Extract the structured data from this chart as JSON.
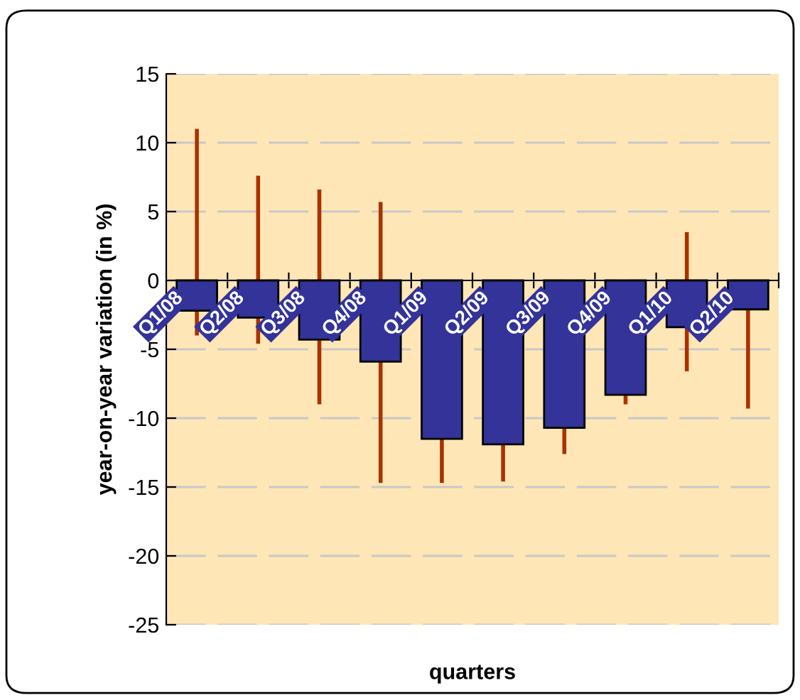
{
  "chart_data": {
    "type": "bar",
    "categories": [
      "Q1/08",
      "Q2/08",
      "Q3/08",
      "Q4/08",
      "Q1/09",
      "Q2/09",
      "Q3/09",
      "Q4/09",
      "Q1/10",
      "Q2/10"
    ],
    "values": [
      -2.2,
      -2.7,
      -4.3,
      -5.9,
      -11.5,
      -11.9,
      -10.7,
      -8.3,
      -3.4,
      -2.1
    ],
    "errors": [
      [
        -4.0,
        11.0
      ],
      [
        -4.6,
        7.6
      ],
      [
        -9.0,
        6.6
      ],
      [
        -14.7,
        5.7
      ],
      [
        -14.7,
        0
      ],
      [
        -14.6,
        0
      ],
      [
        -12.6,
        0
      ],
      [
        -9.0,
        0
      ],
      [
        -6.6,
        3.5
      ],
      [
        -9.3,
        0
      ]
    ],
    "color": "#333399",
    "xlabel": "quarters",
    "ylabel": "year-on-year variation (in %)",
    "ylim": [
      -25,
      15
    ],
    "yticks": [
      -25,
      -20,
      -15,
      -10,
      -5,
      0,
      5,
      10,
      15
    ],
    "grid": "y",
    "legend": false
  }
}
